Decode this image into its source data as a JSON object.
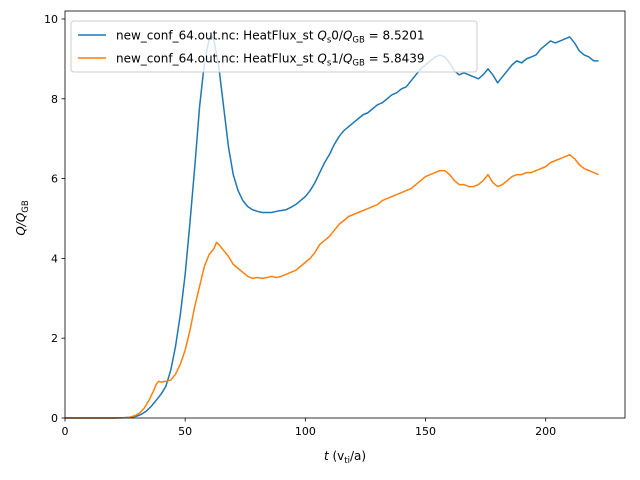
{
  "chart_data": {
    "type": "line",
    "xlabel": {
      "main": "t",
      "unit_pre": " (v",
      "unit_sub": "ti",
      "unit_post": "/a)"
    },
    "ylabel": {
      "main": "Q/Q",
      "sub": "GB"
    },
    "xlim": [
      0,
      233
    ],
    "ylim": [
      0,
      10.2
    ],
    "xticks": [
      0,
      50,
      100,
      150,
      200
    ],
    "yticks": [
      0,
      2,
      4,
      6,
      8,
      10
    ],
    "legend_position": "top-left",
    "grid": false,
    "series": [
      {
        "name": "new_conf_64.out.nc: HeatFlux_st Q_s0/Q_GB = 8.5201",
        "legend": {
          "prefix": "new_conf_64.out.nc: HeatFlux_st ",
          "q": "Q",
          "q_sub": "s",
          "mid": "0/",
          "q2": "Q",
          "q2_sub": "GB",
          "suffix": " = 8.5201"
        },
        "color": "#1f77b4",
        "points": [
          [
            0,
            0
          ],
          [
            20,
            0
          ],
          [
            25,
            0.005
          ],
          [
            28,
            0.02
          ],
          [
            30,
            0.05
          ],
          [
            32,
            0.1
          ],
          [
            34,
            0.18
          ],
          [
            36,
            0.3
          ],
          [
            38,
            0.45
          ],
          [
            40,
            0.6
          ],
          [
            42,
            0.8
          ],
          [
            44,
            1.2
          ],
          [
            46,
            1.8
          ],
          [
            48,
            2.6
          ],
          [
            50,
            3.6
          ],
          [
            52,
            4.9
          ],
          [
            54,
            6.3
          ],
          [
            56,
            7.8
          ],
          [
            58,
            8.9
          ],
          [
            60,
            9.5
          ],
          [
            61,
            9.6
          ],
          [
            62,
            9.45
          ],
          [
            64,
            8.8
          ],
          [
            66,
            7.8
          ],
          [
            68,
            6.8
          ],
          [
            70,
            6.1
          ],
          [
            72,
            5.7
          ],
          [
            74,
            5.45
          ],
          [
            76,
            5.3
          ],
          [
            78,
            5.22
          ],
          [
            80,
            5.18
          ],
          [
            82,
            5.15
          ],
          [
            84,
            5.15
          ],
          [
            86,
            5.15
          ],
          [
            88,
            5.18
          ],
          [
            90,
            5.2
          ],
          [
            92,
            5.22
          ],
          [
            94,
            5.28
          ],
          [
            96,
            5.35
          ],
          [
            98,
            5.45
          ],
          [
            100,
            5.55
          ],
          [
            102,
            5.7
          ],
          [
            104,
            5.9
          ],
          [
            106,
            6.15
          ],
          [
            108,
            6.4
          ],
          [
            110,
            6.6
          ],
          [
            112,
            6.85
          ],
          [
            114,
            7.05
          ],
          [
            116,
            7.2
          ],
          [
            118,
            7.3
          ],
          [
            120,
            7.4
          ],
          [
            122,
            7.5
          ],
          [
            124,
            7.6
          ],
          [
            126,
            7.65
          ],
          [
            128,
            7.75
          ],
          [
            130,
            7.85
          ],
          [
            132,
            7.9
          ],
          [
            134,
            8.0
          ],
          [
            136,
            8.1
          ],
          [
            138,
            8.15
          ],
          [
            140,
            8.25
          ],
          [
            142,
            8.3
          ],
          [
            144,
            8.45
          ],
          [
            146,
            8.6
          ],
          [
            148,
            8.75
          ],
          [
            150,
            8.85
          ],
          [
            152,
            8.95
          ],
          [
            154,
            9.05
          ],
          [
            156,
            9.1
          ],
          [
            158,
            9.05
          ],
          [
            160,
            8.9
          ],
          [
            162,
            8.7
          ],
          [
            164,
            8.6
          ],
          [
            166,
            8.65
          ],
          [
            168,
            8.6
          ],
          [
            170,
            8.55
          ],
          [
            172,
            8.5
          ],
          [
            174,
            8.6
          ],
          [
            176,
            8.75
          ],
          [
            178,
            8.6
          ],
          [
            180,
            8.4
          ],
          [
            182,
            8.55
          ],
          [
            184,
            8.7
          ],
          [
            186,
            8.85
          ],
          [
            188,
            8.95
          ],
          [
            190,
            8.9
          ],
          [
            192,
            9.0
          ],
          [
            194,
            9.05
          ],
          [
            196,
            9.1
          ],
          [
            198,
            9.25
          ],
          [
            200,
            9.35
          ],
          [
            202,
            9.45
          ],
          [
            204,
            9.4
          ],
          [
            206,
            9.45
          ],
          [
            208,
            9.5
          ],
          [
            210,
            9.55
          ],
          [
            212,
            9.4
          ],
          [
            214,
            9.2
          ],
          [
            216,
            9.1
          ],
          [
            218,
            9.05
          ],
          [
            220,
            8.95
          ],
          [
            222,
            8.95
          ]
        ]
      },
      {
        "name": "new_conf_64.out.nc: HeatFlux_st Q_s1/Q_GB = 5.8439",
        "legend": {
          "prefix": "new_conf_64.out.nc: HeatFlux_st ",
          "q": "Q",
          "q_sub": "s",
          "mid": "1/",
          "q2": "Q",
          "q2_sub": "GB",
          "suffix": " = 5.8439"
        },
        "color": "#ff7f0e",
        "points": [
          [
            0,
            0
          ],
          [
            20,
            0
          ],
          [
            24,
            0.005
          ],
          [
            27,
            0.02
          ],
          [
            29,
            0.06
          ],
          [
            31,
            0.12
          ],
          [
            33,
            0.25
          ],
          [
            35,
            0.45
          ],
          [
            37,
            0.7
          ],
          [
            38,
            0.85
          ],
          [
            39,
            0.92
          ],
          [
            40,
            0.9
          ],
          [
            42,
            0.92
          ],
          [
            44,
            0.95
          ],
          [
            46,
            1.1
          ],
          [
            48,
            1.35
          ],
          [
            50,
            1.7
          ],
          [
            52,
            2.2
          ],
          [
            54,
            2.8
          ],
          [
            56,
            3.3
          ],
          [
            58,
            3.8
          ],
          [
            60,
            4.1
          ],
          [
            62,
            4.25
          ],
          [
            63,
            4.4
          ],
          [
            64,
            4.35
          ],
          [
            66,
            4.2
          ],
          [
            68,
            4.05
          ],
          [
            70,
            3.85
          ],
          [
            72,
            3.75
          ],
          [
            74,
            3.65
          ],
          [
            76,
            3.55
          ],
          [
            78,
            3.5
          ],
          [
            80,
            3.52
          ],
          [
            82,
            3.5
          ],
          [
            84,
            3.52
          ],
          [
            86,
            3.55
          ],
          [
            88,
            3.52
          ],
          [
            90,
            3.55
          ],
          [
            92,
            3.6
          ],
          [
            94,
            3.65
          ],
          [
            96,
            3.7
          ],
          [
            98,
            3.8
          ],
          [
            100,
            3.9
          ],
          [
            102,
            4.0
          ],
          [
            104,
            4.15
          ],
          [
            106,
            4.35
          ],
          [
            108,
            4.45
          ],
          [
            110,
            4.55
          ],
          [
            112,
            4.7
          ],
          [
            114,
            4.85
          ],
          [
            116,
            4.95
          ],
          [
            118,
            5.05
          ],
          [
            120,
            5.1
          ],
          [
            122,
            5.15
          ],
          [
            124,
            5.2
          ],
          [
            126,
            5.25
          ],
          [
            128,
            5.3
          ],
          [
            130,
            5.35
          ],
          [
            132,
            5.45
          ],
          [
            134,
            5.5
          ],
          [
            136,
            5.55
          ],
          [
            138,
            5.6
          ],
          [
            140,
            5.65
          ],
          [
            142,
            5.7
          ],
          [
            144,
            5.75
          ],
          [
            146,
            5.85
          ],
          [
            148,
            5.95
          ],
          [
            150,
            6.05
          ],
          [
            152,
            6.1
          ],
          [
            154,
            6.15
          ],
          [
            156,
            6.2
          ],
          [
            158,
            6.2
          ],
          [
            160,
            6.1
          ],
          [
            162,
            5.95
          ],
          [
            164,
            5.85
          ],
          [
            166,
            5.85
          ],
          [
            168,
            5.8
          ],
          [
            170,
            5.8
          ],
          [
            172,
            5.85
          ],
          [
            174,
            5.95
          ],
          [
            176,
            6.1
          ],
          [
            178,
            5.9
          ],
          [
            180,
            5.8
          ],
          [
            182,
            5.85
          ],
          [
            184,
            5.95
          ],
          [
            186,
            6.05
          ],
          [
            188,
            6.1
          ],
          [
            190,
            6.1
          ],
          [
            192,
            6.15
          ],
          [
            194,
            6.15
          ],
          [
            196,
            6.2
          ],
          [
            198,
            6.25
          ],
          [
            200,
            6.3
          ],
          [
            202,
            6.4
          ],
          [
            204,
            6.45
          ],
          [
            206,
            6.5
          ],
          [
            208,
            6.55
          ],
          [
            210,
            6.6
          ],
          [
            212,
            6.5
          ],
          [
            214,
            6.35
          ],
          [
            216,
            6.25
          ],
          [
            218,
            6.2
          ],
          [
            220,
            6.15
          ],
          [
            222,
            6.1
          ]
        ]
      }
    ]
  }
}
